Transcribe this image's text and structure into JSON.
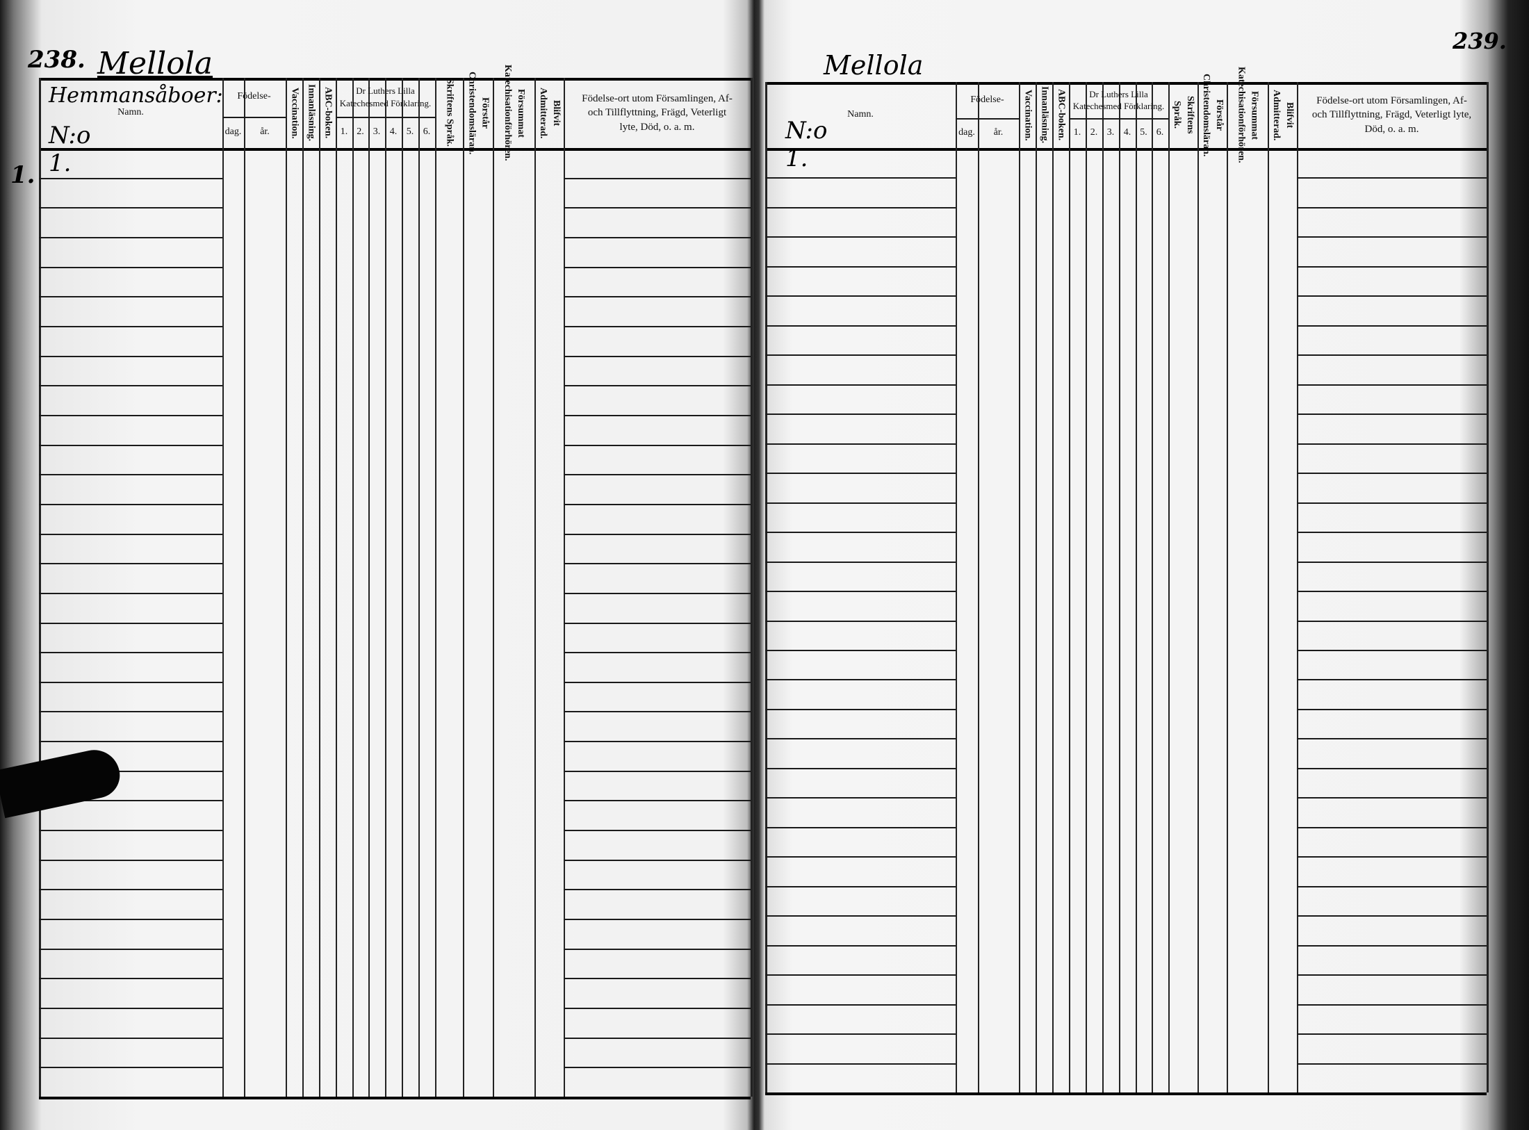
{
  "left_page": {
    "page_number": "238.",
    "parish": "Mellola",
    "household_label": "Hemmansåboer:",
    "household_no": "N:o 1.",
    "margin_mark": "1.",
    "headers": {
      "name": "Namn.",
      "birth": "Födelse-",
      "day": "dag.",
      "year": "år.",
      "vaccination": "Vaccination.",
      "reading": "Innanläsning.",
      "abc": "ABC-boken.",
      "catechism": "Dr Luthers Lilla Katechesmed Förklaring.",
      "catechism_parts": [
        "1.",
        "2.",
        "3.",
        "4.",
        "5.",
        "6."
      ],
      "scripture": "Skriftens Språk.",
      "understands": "Förstår Christendomsläran.",
      "missed": "Försummat Katechisationförhören.",
      "admitted": "Blifvit Admitterad.",
      "notes": "Födelse-ort utom Församlingen, Af- och Tillflyttning, Frägd, Veterligt lyte, Död, o. a. m."
    }
  },
  "right_page": {
    "page_number": "239.",
    "parish": "Mellola",
    "household_no": "N:o 1.",
    "headers": {
      "name": "Namn.",
      "birth": "Födelse-",
      "day": "dag.",
      "year": "år.",
      "vaccination": "Vaccination.",
      "reading": "Innanläsning.",
      "abc": "ABC-boken.",
      "catechism": "Dr Luthers Lilla Katechesmed Förklaring.",
      "catechism_parts": [
        "1.",
        "2.",
        "3.",
        "4.",
        "5.",
        "6."
      ],
      "scripture": "Skriftens Språk.",
      "understands": "Förstår Christendomsläran.",
      "missed": "Försummat Katechisationförhören.",
      "admitted": "Blifvit Admitterad.",
      "notes": "Födelse-ort utom Församlingen, Af- och Tillflyttning, Frägd, Veterligt lyte, Död, o. a. m."
    }
  }
}
